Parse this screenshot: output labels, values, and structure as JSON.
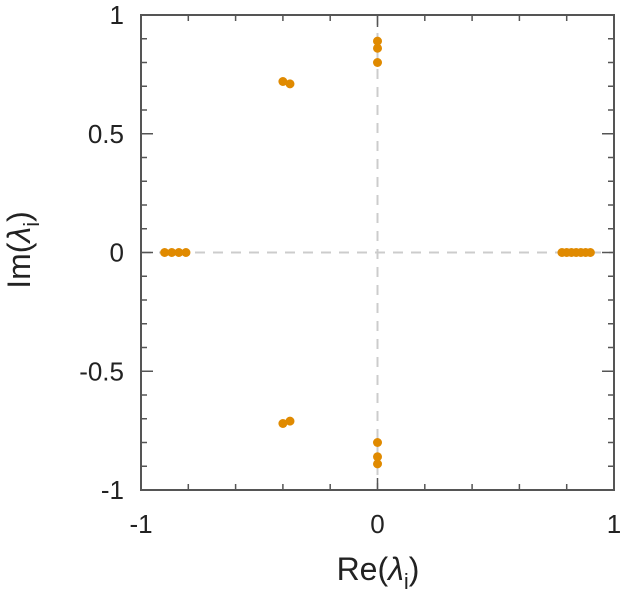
{
  "chart_data": {
    "type": "scatter",
    "xlabel": "Re(λi)",
    "ylabel": "Im(λi)",
    "xlabel_parts": {
      "prefix": "Re(",
      "symbol": "λ",
      "subscript": "i",
      "suffix": ")"
    },
    "ylabel_parts": {
      "prefix": "Im(",
      "symbol": "λ",
      "subscript": "i",
      "suffix": ")"
    },
    "xlim": [
      -1,
      1
    ],
    "ylim": [
      -1,
      1
    ],
    "x_ticks": [
      -1,
      0,
      1
    ],
    "x_tick_labels": [
      "-1",
      "0",
      "1"
    ],
    "y_ticks": [
      1,
      0.5,
      0,
      -0.5,
      -1
    ],
    "y_tick_labels": [
      "1",
      "0.5",
      "0",
      "-0.5",
      "-1"
    ],
    "grid": false,
    "zero_lines": true,
    "colors": {
      "marker": "#E08A00",
      "zero_line": "#CCCCCC",
      "frame": "#555555"
    },
    "series": [
      {
        "x": [
          -0.9,
          -0.87,
          -0.84,
          -0.81,
          0.78,
          0.8,
          0.82,
          0.84,
          0.86,
          0.88,
          0.9,
          0.0,
          0.0,
          0.0,
          0.0,
          0.0,
          0.0,
          -0.4,
          -0.37,
          -0.4,
          -0.37
        ],
        "y": [
          0,
          0,
          0,
          0,
          0,
          0,
          0,
          0,
          0,
          0,
          0,
          0.89,
          0.86,
          0.8,
          -0.8,
          -0.86,
          -0.89,
          0.72,
          0.71,
          -0.72,
          -0.71
        ]
      }
    ]
  }
}
